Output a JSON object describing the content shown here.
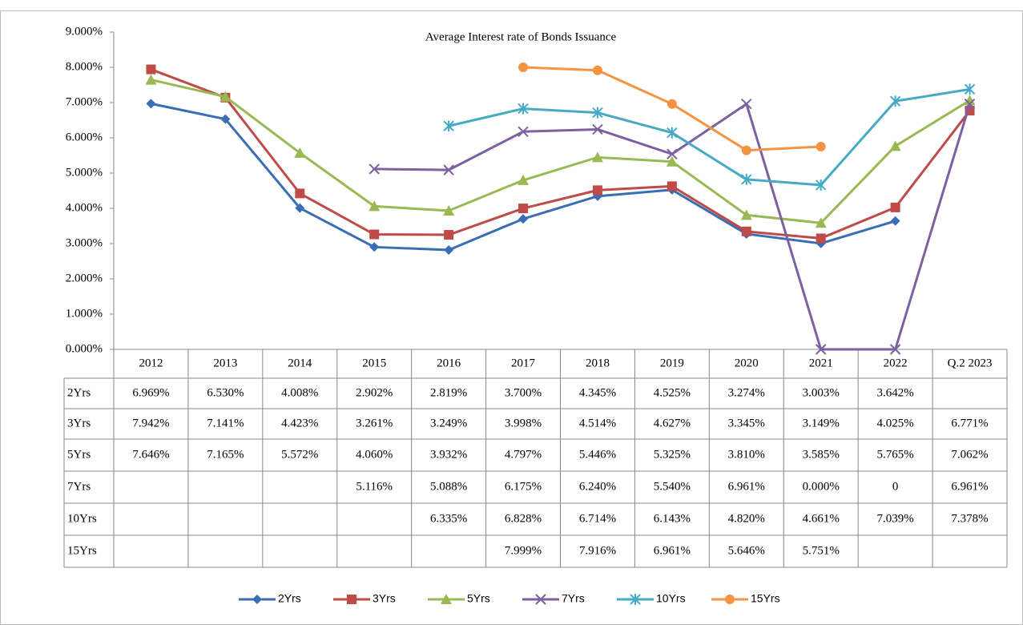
{
  "chart_data": {
    "type": "line",
    "title": "Average Interest rate of Bonds Issuance",
    "categories": [
      "2012",
      "2013",
      "2014",
      "2015",
      "2016",
      "2017",
      "2018",
      "2019",
      "2020",
      "2021",
      "2022",
      "Q.2 2023"
    ],
    "ylim": [
      0,
      9
    ],
    "yticks": [
      {
        "value": 0,
        "label": "0.000%"
      },
      {
        "value": 1,
        "label": "1.000%"
      },
      {
        "value": 2,
        "label": "2.000%"
      },
      {
        "value": 3,
        "label": "3.000%"
      },
      {
        "value": 4,
        "label": "4.000%"
      },
      {
        "value": 5,
        "label": "5.000%"
      },
      {
        "value": 6,
        "label": "6.000%"
      },
      {
        "value": 7,
        "label": "7.000%"
      },
      {
        "value": 8,
        "label": "8.000%"
      },
      {
        "value": 9,
        "label": "9.000%"
      }
    ],
    "legend": "bottom",
    "series": [
      {
        "name": "2Yrs",
        "color": "#3b6db4",
        "marker": "diamond",
        "values": [
          6.969,
          6.53,
          4.008,
          2.902,
          2.819,
          3.7,
          4.345,
          4.525,
          3.274,
          3.003,
          3.642,
          null
        ],
        "value_labels": [
          "6.969%",
          "6.530%",
          "4.008%",
          "2.902%",
          "2.819%",
          "3.700%",
          "4.345%",
          "4.525%",
          "3.274%",
          "3.003%",
          "3.642%",
          null
        ]
      },
      {
        "name": "3Yrs",
        "color": "#be4b48",
        "marker": "square",
        "values": [
          7.942,
          7.141,
          4.423,
          3.261,
          3.249,
          3.998,
          4.514,
          4.627,
          3.345,
          3.149,
          4.025,
          6.771
        ],
        "value_labels": [
          "7.942%",
          "7.141%",
          "4.423%",
          "3.261%",
          "3.249%",
          "3.998%",
          "4.514%",
          "4.627%",
          "3.345%",
          "3.149%",
          "4.025%",
          "6.771%"
        ]
      },
      {
        "name": "5Yrs",
        "color": "#98b954",
        "marker": "triangle",
        "values": [
          7.646,
          7.165,
          5.572,
          4.06,
          3.932,
          4.797,
          5.446,
          5.325,
          3.81,
          3.585,
          5.765,
          7.062
        ],
        "value_labels": [
          "7.646%",
          "7.165%",
          "5.572%",
          "4.060%",
          "3.932%",
          "4.797%",
          "5.446%",
          "5.325%",
          "3.810%",
          "3.585%",
          "5.765%",
          "7.062%"
        ]
      },
      {
        "name": "7Yrs",
        "color": "#7d60a0",
        "marker": "x",
        "values": [
          null,
          null,
          null,
          5.116,
          5.088,
          6.175,
          6.24,
          5.54,
          6.961,
          0,
          0,
          6.961
        ],
        "value_labels": [
          null,
          null,
          null,
          "5.116%",
          "5.088%",
          "6.175%",
          "6.240%",
          "5.540%",
          "6.961%",
          "0.000%",
          "0",
          "6.961%"
        ]
      },
      {
        "name": "10Yrs",
        "color": "#46aac5",
        "marker": "star",
        "values": [
          null,
          null,
          null,
          null,
          6.335,
          6.828,
          6.714,
          6.143,
          4.82,
          4.661,
          7.039,
          7.378
        ],
        "value_labels": [
          null,
          null,
          null,
          null,
          "6.335%",
          "6.828%",
          "6.714%",
          "6.143%",
          "4.820%",
          "4.661%",
          "7.039%",
          "7.378%"
        ]
      },
      {
        "name": "15Yrs",
        "color": "#f59343",
        "marker": "circle",
        "values": [
          null,
          null,
          null,
          null,
          null,
          7.999,
          7.916,
          6.961,
          5.646,
          5.751,
          null,
          null
        ],
        "value_labels": [
          null,
          null,
          null,
          null,
          null,
          "7.999%",
          "7.916%",
          "6.961%",
          "5.646%",
          "5.751%",
          null,
          null
        ]
      }
    ]
  }
}
